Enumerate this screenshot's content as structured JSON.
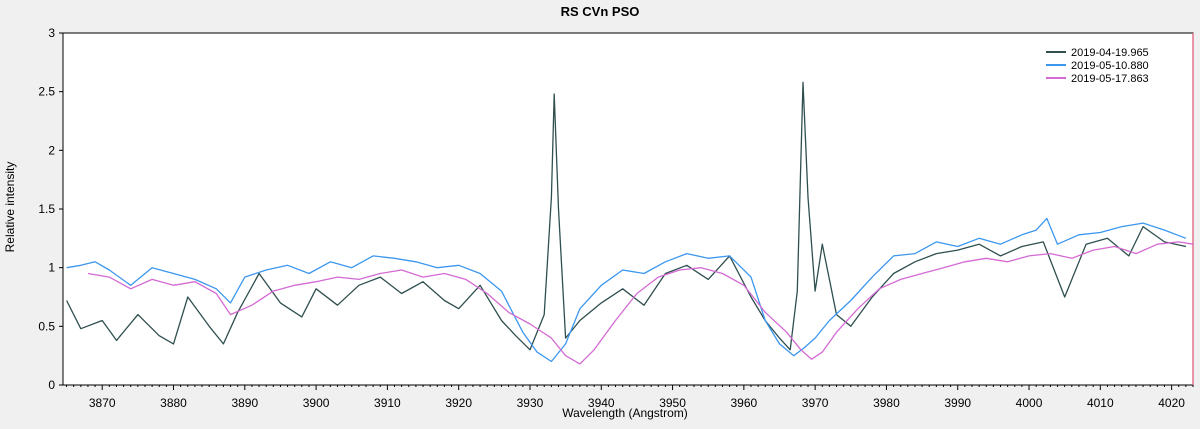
{
  "chart_data": {
    "type": "line",
    "title": "RS CVn   PSO",
    "xlabel": "Wavelength (Angstrom)",
    "ylabel": "Relative intensity",
    "xlim": [
      3864.5,
      4023
    ],
    "ylim": [
      0,
      3
    ],
    "xticks": [
      3870,
      3880,
      3890,
      3900,
      3910,
      3920,
      3930,
      3940,
      3950,
      3960,
      3970,
      3980,
      3990,
      4000,
      4010,
      4020
    ],
    "yticks": [
      0,
      0.5,
      1,
      1.5,
      2,
      2.5,
      3
    ],
    "ytick_labels": [
      "0",
      "0.5",
      "1",
      "1.5",
      "2",
      "2.5",
      "3"
    ],
    "grid": false,
    "legend_position": "top-right",
    "series": [
      {
        "name": "2019-04-19.965",
        "color": "#2f4f4f",
        "x": [
          3865,
          3867,
          3870,
          3872,
          3875,
          3878,
          3880,
          3882,
          3885,
          3887,
          3889,
          3892,
          3895,
          3898,
          3900,
          3903,
          3906,
          3909,
          3912,
          3915,
          3918,
          3920,
          3923,
          3926,
          3928,
          3930,
          3932,
          3933,
          3933.4,
          3934,
          3935,
          3937,
          3940,
          3943,
          3946,
          3949,
          3952,
          3955,
          3958,
          3961,
          3963,
          3965,
          3966.5,
          3967.5,
          3968.3,
          3969,
          3970,
          3971,
          3973,
          3975,
          3978,
          3981,
          3984,
          3987,
          3990,
          3993,
          3996,
          3999,
          4002,
          4005,
          4008,
          4011,
          4014,
          4016,
          4019,
          4022
        ],
        "y": [
          0.72,
          0.48,
          0.55,
          0.38,
          0.6,
          0.42,
          0.35,
          0.75,
          0.5,
          0.35,
          0.62,
          0.95,
          0.7,
          0.58,
          0.82,
          0.68,
          0.85,
          0.92,
          0.78,
          0.88,
          0.72,
          0.65,
          0.85,
          0.55,
          0.42,
          0.3,
          0.6,
          1.6,
          2.48,
          1.5,
          0.4,
          0.55,
          0.7,
          0.82,
          0.68,
          0.95,
          1.02,
          0.9,
          1.1,
          0.75,
          0.55,
          0.4,
          0.3,
          0.8,
          2.58,
          1.6,
          0.8,
          1.2,
          0.6,
          0.5,
          0.75,
          0.95,
          1.05,
          1.12,
          1.15,
          1.2,
          1.1,
          1.18,
          1.22,
          0.75,
          1.2,
          1.25,
          1.1,
          1.35,
          1.22,
          1.18
        ]
      },
      {
        "name": "2019-05-10.880",
        "color": "#3c97ef",
        "x": [
          3865,
          3867,
          3869,
          3871,
          3874,
          3877,
          3880,
          3883,
          3886,
          3888,
          3890,
          3893,
          3896,
          3899,
          3902,
          3905,
          3908,
          3911,
          3914,
          3917,
          3920,
          3923,
          3926,
          3929,
          3931,
          3933,
          3935,
          3937,
          3940,
          3943,
          3946,
          3949,
          3952,
          3955,
          3958,
          3961,
          3963,
          3965,
          3967,
          3968.5,
          3970,
          3972,
          3975,
          3978,
          3981,
          3984,
          3987,
          3990,
          3993,
          3996,
          3999,
          4001,
          4002.5,
          4004,
          4007,
          4010,
          4013,
          4016,
          4019,
          4022
        ],
        "y": [
          1.0,
          1.02,
          1.05,
          0.98,
          0.85,
          1.0,
          0.95,
          0.9,
          0.82,
          0.7,
          0.92,
          0.98,
          1.02,
          0.95,
          1.05,
          1.0,
          1.1,
          1.08,
          1.05,
          1.0,
          1.02,
          0.95,
          0.8,
          0.45,
          0.28,
          0.2,
          0.35,
          0.65,
          0.85,
          0.98,
          0.95,
          1.05,
          1.12,
          1.08,
          1.1,
          0.92,
          0.55,
          0.35,
          0.25,
          0.32,
          0.4,
          0.55,
          0.72,
          0.92,
          1.1,
          1.12,
          1.22,
          1.18,
          1.25,
          1.2,
          1.28,
          1.32,
          1.42,
          1.2,
          1.28,
          1.3,
          1.35,
          1.38,
          1.32,
          1.25
        ]
      },
      {
        "name": "2019-05-17.863",
        "color": "#d46ad4",
        "x": [
          3868,
          3871,
          3874,
          3877,
          3880,
          3883,
          3886,
          3888,
          3891,
          3894,
          3897,
          3900,
          3903,
          3906,
          3909,
          3912,
          3915,
          3918,
          3921,
          3924,
          3927,
          3930,
          3933,
          3935,
          3937,
          3939,
          3942,
          3945,
          3948,
          3951,
          3954,
          3957,
          3960,
          3963,
          3966,
          3968,
          3969.5,
          3971,
          3973,
          3976,
          3979,
          3982,
          3985,
          3988,
          3991,
          3994,
          3997,
          4000,
          4003,
          4006,
          4009,
          4012,
          4015,
          4018,
          4021,
          4023
        ],
        "y": [
          0.95,
          0.92,
          0.82,
          0.9,
          0.85,
          0.88,
          0.78,
          0.6,
          0.68,
          0.8,
          0.85,
          0.88,
          0.92,
          0.9,
          0.95,
          0.98,
          0.92,
          0.95,
          0.9,
          0.78,
          0.62,
          0.52,
          0.4,
          0.25,
          0.18,
          0.3,
          0.55,
          0.78,
          0.92,
          0.98,
          1.0,
          0.95,
          0.85,
          0.62,
          0.45,
          0.3,
          0.22,
          0.28,
          0.45,
          0.65,
          0.82,
          0.9,
          0.95,
          1.0,
          1.05,
          1.08,
          1.05,
          1.1,
          1.12,
          1.08,
          1.15,
          1.18,
          1.12,
          1.2,
          1.22,
          1.2
        ]
      }
    ]
  }
}
